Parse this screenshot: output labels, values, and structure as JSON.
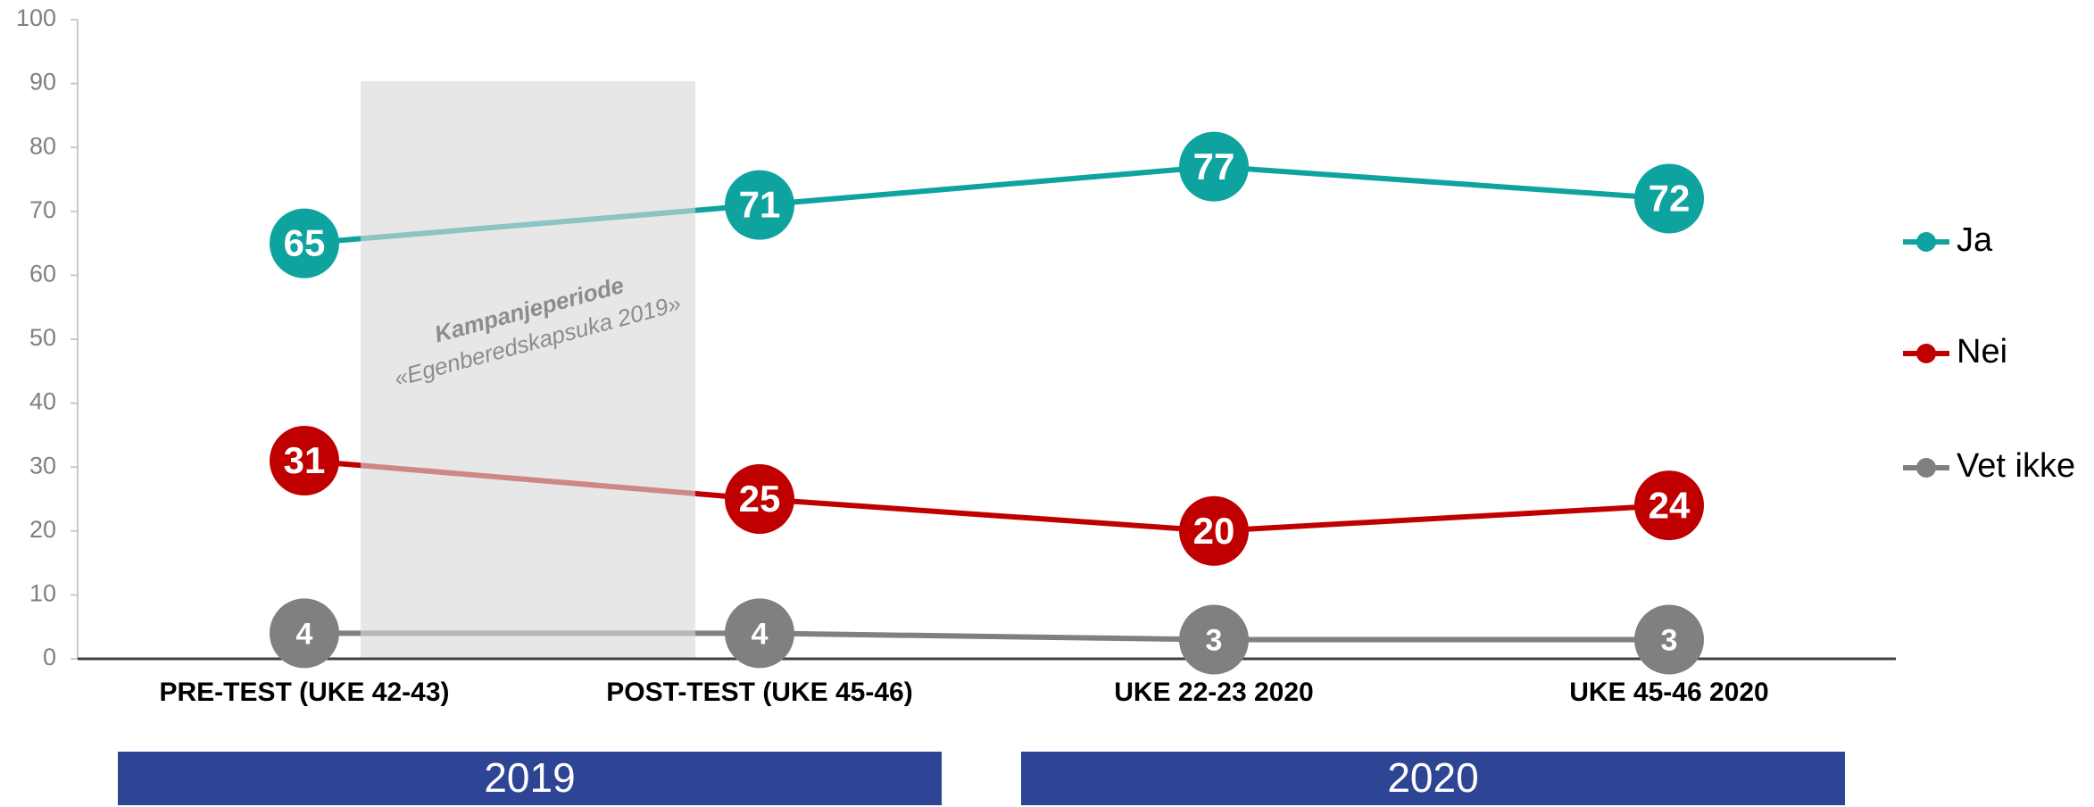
{
  "chart_data": {
    "type": "line",
    "categories": [
      "PRE-TEST (UKE 42-43)",
      "POST-TEST (UKE 45-46)",
      "UKE 22-23 2020",
      "UKE 45-46 2020"
    ],
    "series": [
      {
        "name": "Ja",
        "color": "#0fa3a0",
        "values": [
          65,
          71,
          77,
          72
        ]
      },
      {
        "name": "Nei",
        "color": "#c00000",
        "values": [
          31,
          25,
          20,
          24
        ]
      },
      {
        "name": "Vet ikke",
        "color": "#808080",
        "values": [
          4,
          4,
          3,
          3
        ]
      }
    ],
    "ylim": [
      0,
      100
    ],
    "yticks": [
      0,
      10,
      20,
      30,
      40,
      50,
      60,
      70,
      80,
      90,
      100
    ],
    "annotation": [
      "Kampanjeperiode",
      "«Egenberedskapsuka 2019»"
    ],
    "groups": [
      "2019",
      "2020"
    ],
    "group_color": "#2e4596",
    "legend": "right"
  }
}
